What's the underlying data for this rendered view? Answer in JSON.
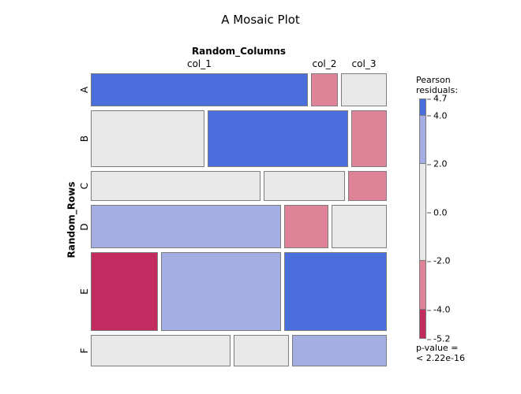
{
  "title": "A Mosaic Plot",
  "legend": {
    "title_line1": "Pearson",
    "title_line2": "residuals:",
    "scale_max": 4.7,
    "scale_min": -5.2,
    "tick_values": [
      "4.7",
      "4.0",
      "2.0",
      "0.0",
      "-2.0",
      "-4.0",
      "-5.2"
    ],
    "segments": [
      {
        "from": 4.7,
        "to": 4.0,
        "level": "pos_high"
      },
      {
        "from": 4.0,
        "to": 2.0,
        "level": "pos_mid"
      },
      {
        "from": 2.0,
        "to": -2.0,
        "level": "neutral"
      },
      {
        "from": -2.0,
        "to": -4.0,
        "level": "neg_mid"
      },
      {
        "from": -4.0,
        "to": -5.2,
        "level": "neg_high"
      }
    ],
    "pvalue_line1": "p-value =",
    "pvalue_line2": "< 2.22e-16"
  },
  "colors": {
    "pos_high": "#4a6fdc",
    "pos_mid": "#a4aee2",
    "neutral": "#e8e8e8",
    "neg_mid": "#df8399",
    "neg_high": "#c22a60",
    "tile_border": "#7d7d7d"
  },
  "chart_data": {
    "type": "mosaic",
    "x_variable": "Random_Columns",
    "y_variable": "Random_Rows",
    "columns": [
      "col_1",
      "col_2",
      "col_3"
    ],
    "rows": [
      "A",
      "B",
      "C",
      "D",
      "E",
      "F"
    ],
    "residual_scale": {
      "max": 4.7,
      "min": -5.2,
      "breaks": [
        4.0,
        2.0,
        -2.0,
        -4.0
      ]
    },
    "p_value": "< 2.22e-16",
    "rows_data": [
      {
        "row": "A",
        "height_frac": 0.121,
        "tiles": [
          {
            "col": "col_1",
            "width_frac": 0.749,
            "residual_level": "pos_high"
          },
          {
            "col": "col_2",
            "width_frac": 0.093,
            "residual_level": "neg_mid"
          },
          {
            "col": "col_3",
            "width_frac": 0.158,
            "residual_level": "neutral"
          }
        ]
      },
      {
        "row": "B",
        "height_frac": 0.208,
        "tiles": [
          {
            "col": "col_1",
            "width_frac": 0.392,
            "residual_level": "neutral"
          },
          {
            "col": "col_2",
            "width_frac": 0.485,
            "residual_level": "pos_high"
          },
          {
            "col": "col_3",
            "width_frac": 0.123,
            "residual_level": "neg_mid"
          }
        ]
      },
      {
        "row": "C",
        "height_frac": 0.11,
        "tiles": [
          {
            "col": "col_1",
            "width_frac": 0.586,
            "residual_level": "neutral"
          },
          {
            "col": "col_2",
            "width_frac": 0.281,
            "residual_level": "neutral"
          },
          {
            "col": "col_3",
            "width_frac": 0.133,
            "residual_level": "neg_mid"
          }
        ]
      },
      {
        "row": "D",
        "height_frac": 0.158,
        "tiles": [
          {
            "col": "col_1",
            "width_frac": 0.657,
            "residual_level": "pos_mid"
          },
          {
            "col": "col_2",
            "width_frac": 0.153,
            "residual_level": "neg_mid"
          },
          {
            "col": "col_3",
            "width_frac": 0.19,
            "residual_level": "neutral"
          }
        ]
      },
      {
        "row": "E",
        "height_frac": 0.288,
        "tiles": [
          {
            "col": "col_1",
            "width_frac": 0.232,
            "residual_level": "neg_high"
          },
          {
            "col": "col_2",
            "width_frac": 0.414,
            "residual_level": "pos_mid"
          },
          {
            "col": "col_3",
            "width_frac": 0.354,
            "residual_level": "pos_high"
          }
        ]
      },
      {
        "row": "F",
        "height_frac": 0.115,
        "tiles": [
          {
            "col": "col_1",
            "width_frac": 0.482,
            "residual_level": "neutral"
          },
          {
            "col": "col_2",
            "width_frac": 0.191,
            "residual_level": "neutral"
          },
          {
            "col": "col_3",
            "width_frac": 0.327,
            "residual_level": "pos_mid"
          }
        ]
      }
    ]
  }
}
